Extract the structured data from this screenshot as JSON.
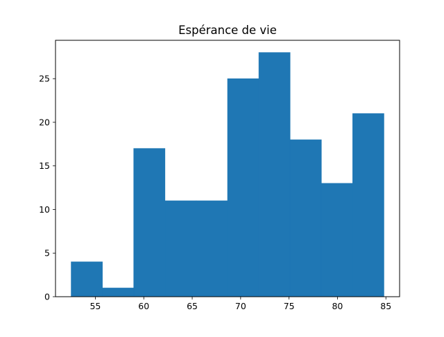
{
  "chart_data": {
    "type": "histogram",
    "title": "Espérance de vie",
    "xlabel": "",
    "ylabel": "",
    "bin_edges": [
      52.5,
      55.73,
      58.96,
      62.19,
      65.42,
      68.65,
      71.88,
      75.11,
      78.34,
      81.57,
      84.8
    ],
    "counts": [
      4,
      1,
      17,
      11,
      11,
      25,
      28,
      18,
      13,
      21
    ],
    "xlim": [
      50.885,
      86.415
    ],
    "ylim": [
      0,
      29.4
    ],
    "x_ticks": [
      55,
      60,
      65,
      70,
      75,
      80,
      85
    ],
    "y_ticks": [
      0,
      5,
      10,
      15,
      20,
      25
    ],
    "x_tick_labels": [
      "55",
      "60",
      "65",
      "70",
      "75",
      "80",
      "85"
    ],
    "y_tick_labels": [
      "0",
      "5",
      "10",
      "15",
      "20",
      "25"
    ],
    "grid": false,
    "bar_color": "#1f77b4"
  }
}
